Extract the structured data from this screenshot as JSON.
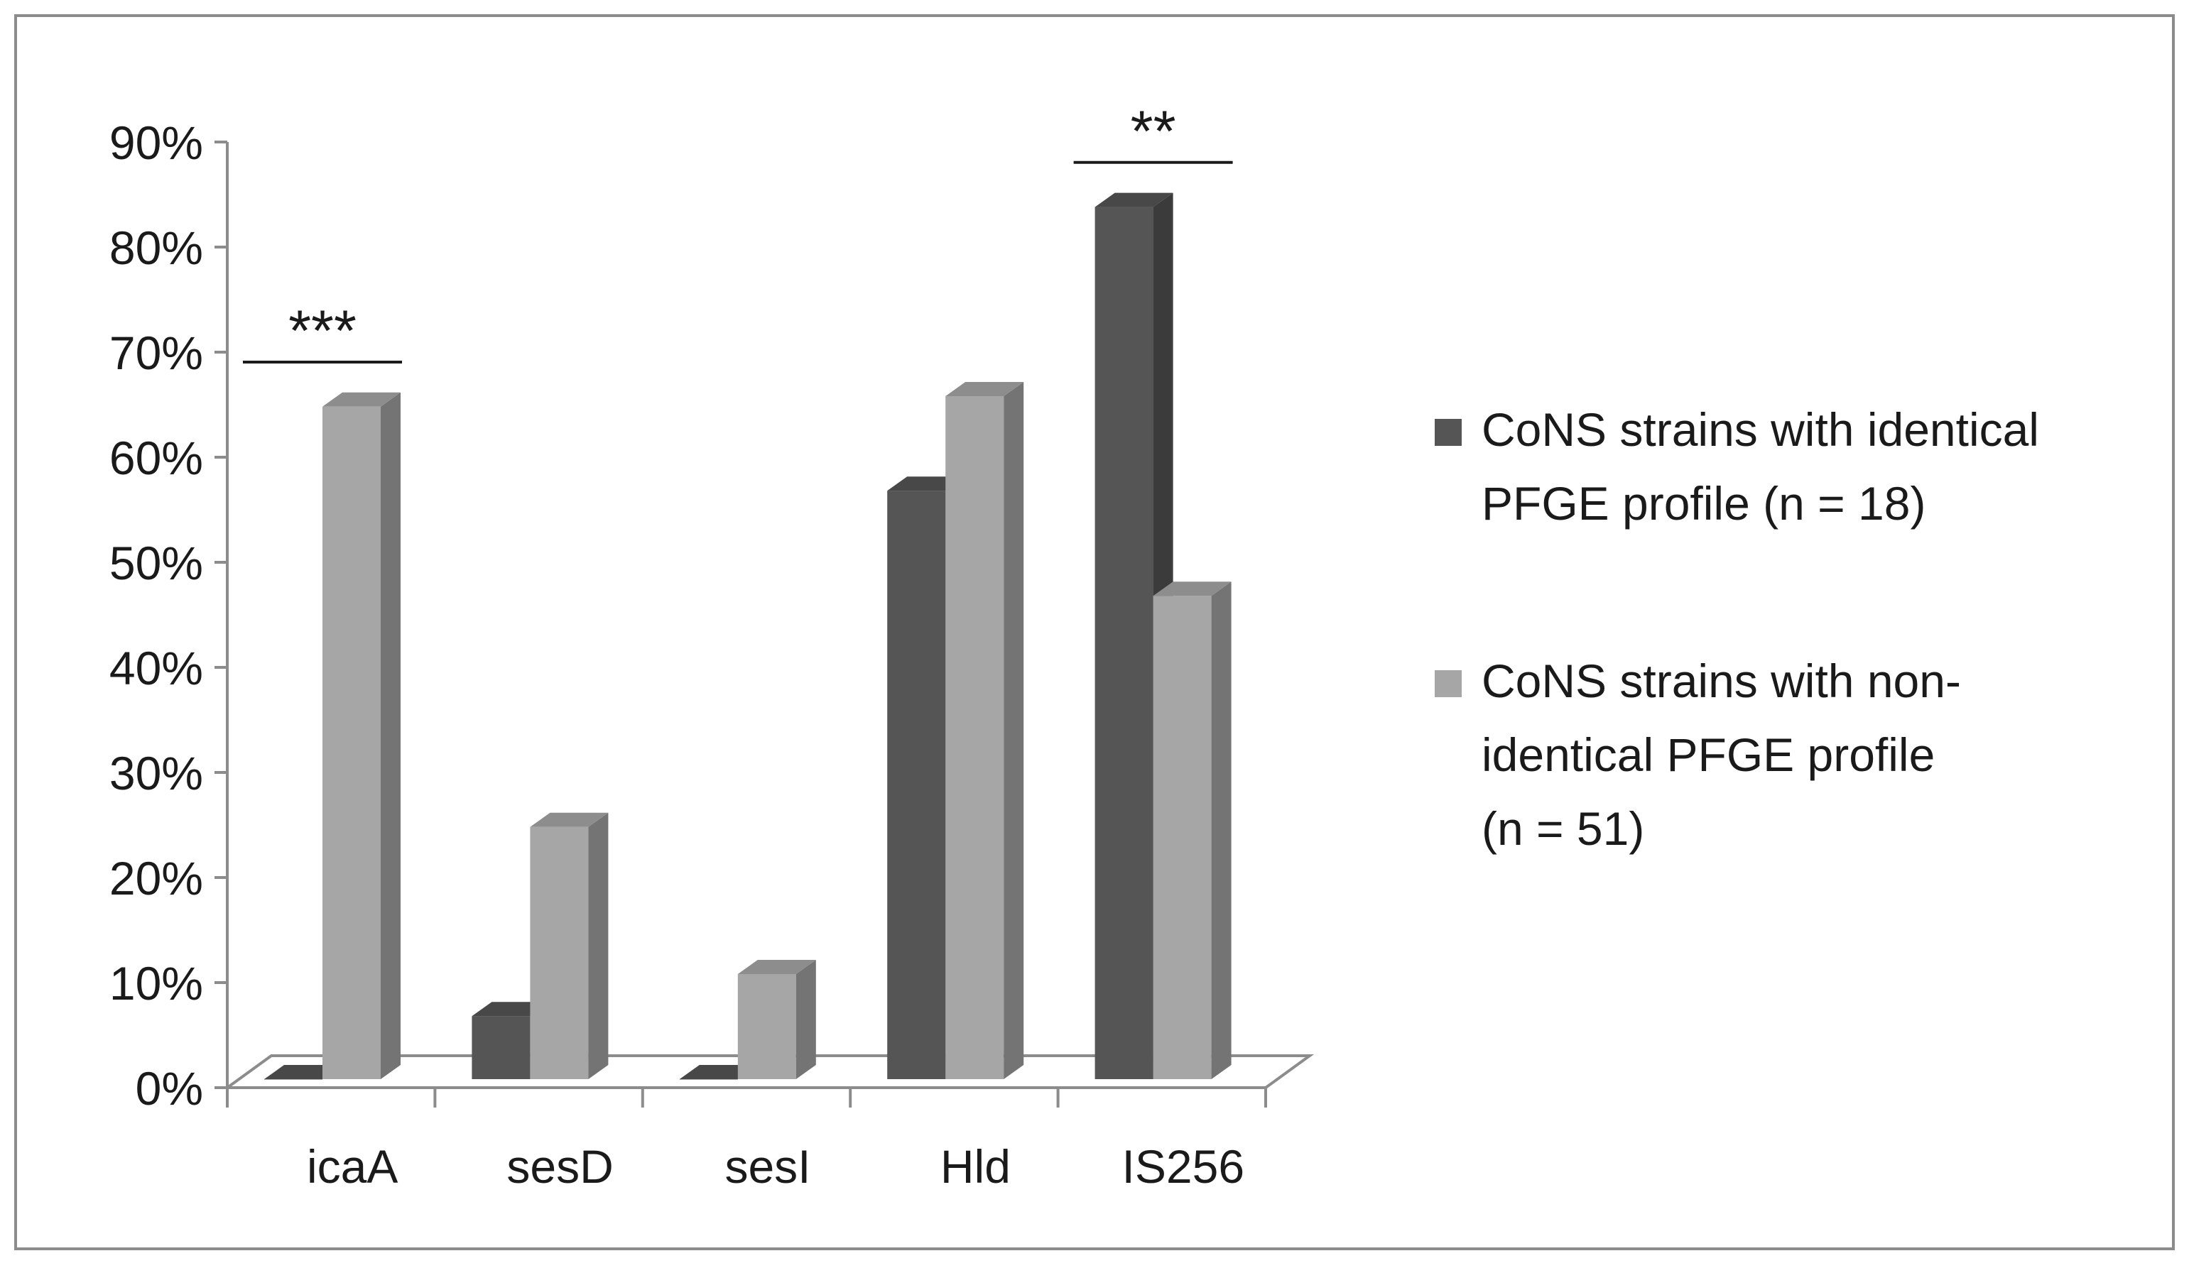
{
  "chart_data": {
    "type": "bar",
    "categories": [
      "icaA",
      "sesD",
      "sesI",
      "Hld",
      "IS256"
    ],
    "series": [
      {
        "name": "CoNS strains with identical PFGE profile (n = 18)",
        "values": [
          0,
          6,
          0,
          56,
          83
        ],
        "color": "#555555"
      },
      {
        "name": "CoNS strains with non-identical PFGE profile (n = 51)",
        "values": [
          64,
          24,
          10,
          65,
          46
        ],
        "color": "#a6a6a6"
      }
    ],
    "ylim": [
      0,
      90
    ],
    "y_ticks": [
      "0%",
      "10%",
      "20%",
      "30%",
      "40%",
      "50%",
      "60%",
      "70%",
      "80%",
      "90%"
    ],
    "y_tick_values": [
      0,
      10,
      20,
      30,
      40,
      50,
      60,
      70,
      80,
      90
    ],
    "legend": {
      "placement": "right",
      "items": [
        {
          "lines": [
            "CoNS strains with identical",
            "PFGE profile (n = 18)"
          ],
          "color": "#555555"
        },
        {
          "lines": [
            "CoNS strains with non-",
            "identical PFGE profile",
            "(n = 51)"
          ],
          "color": "#a6a6a6"
        }
      ]
    },
    "annotations": [
      {
        "text": "***",
        "category": "icaA",
        "y": 70
      },
      {
        "text": "**",
        "category": "IS256",
        "y": 89
      }
    ],
    "grid": false,
    "style": "3d-clustered-column"
  }
}
